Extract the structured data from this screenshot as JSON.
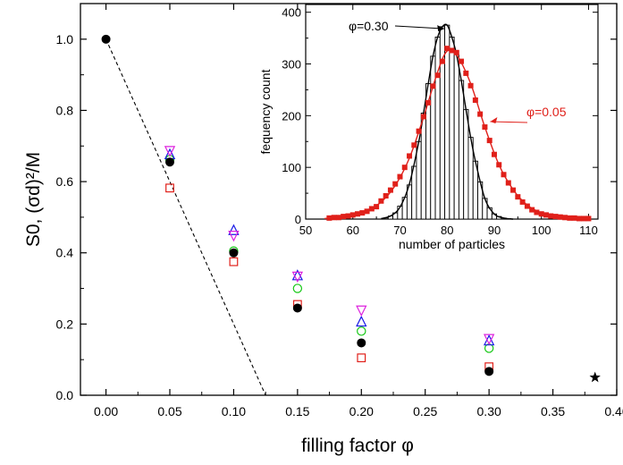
{
  "chart_data": [
    {
      "type": "scatter",
      "xlabel": "filling factor φ",
      "ylabel": "S0, (σd)²/M",
      "xlim": [
        -0.02,
        0.4
      ],
      "ylim": [
        0.0,
        1.1
      ],
      "xticks": [
        "0.00",
        "0.05",
        "0.10",
        "0.15",
        "0.20",
        "0.25",
        "0.30",
        "0.35",
        "0.40"
      ],
      "yticks": [
        "0.0",
        "0.2",
        "0.4",
        "0.6",
        "0.8",
        "1.0"
      ],
      "series": [
        {
          "marker": "filled-circle",
          "color": "#000000",
          "points": [
            [
              0.0,
              1.0
            ],
            [
              0.05,
              0.655
            ],
            [
              0.1,
              0.4
            ],
            [
              0.15,
              0.245
            ],
            [
              0.2,
              0.147
            ],
            [
              0.3,
              0.067
            ]
          ]
        },
        {
          "marker": "open-square",
          "color": "#e0201a",
          "points": [
            [
              0.05,
              0.582
            ],
            [
              0.1,
              0.375
            ],
            [
              0.15,
              0.255
            ],
            [
              0.2,
              0.105
            ],
            [
              0.3,
              0.08
            ]
          ]
        },
        {
          "marker": "open-circle",
          "color": "#16c816",
          "points": [
            [
              0.05,
              0.662
            ],
            [
              0.1,
              0.405
            ],
            [
              0.15,
              0.3
            ],
            [
              0.2,
              0.18
            ],
            [
              0.3,
              0.132
            ]
          ]
        },
        {
          "marker": "open-triangle-up",
          "color": "#1a1ae6",
          "points": [
            [
              0.05,
              0.675
            ],
            [
              0.1,
              0.462
            ],
            [
              0.15,
              0.335
            ],
            [
              0.2,
              0.205
            ],
            [
              0.3,
              0.152
            ]
          ]
        },
        {
          "marker": "open-triangle-down",
          "color": "#dd22dd",
          "points": [
            [
              0.05,
              0.688
            ],
            [
              0.1,
              0.45
            ],
            [
              0.15,
              0.335
            ],
            [
              0.2,
              0.24
            ],
            [
              0.3,
              0.16
            ]
          ]
        },
        {
          "marker": "star",
          "color": "#000000",
          "points": [
            [
              0.383,
              0.05
            ]
          ]
        }
      ],
      "reference_line": {
        "style": "dashed",
        "color": "#000000",
        "points": [
          [
            0.0,
            1.0
          ],
          [
            0.125,
            0.0
          ]
        ]
      }
    },
    {
      "type": "bar",
      "xlabel": "number of particles",
      "ylabel": "fequency count",
      "xlim": [
        50,
        112
      ],
      "ylim": [
        0,
        415
      ],
      "xticks": [
        "50",
        "60",
        "70",
        "80",
        "90",
        "100",
        "110"
      ],
      "yticks": [
        "0",
        "100",
        "200",
        "300",
        "400"
      ],
      "histogram": {
        "name": "φ=0.30",
        "color": "#000000",
        "bin_width": 1,
        "bin_centers": [
          67,
          68,
          69,
          70,
          71,
          72,
          73,
          74,
          75,
          76,
          77,
          78,
          79,
          80,
          81,
          82,
          83,
          84,
          85,
          86,
          87,
          88,
          89,
          90,
          91,
          92,
          93
        ],
        "counts": [
          2,
          6,
          12,
          25,
          42,
          66,
          102,
          150,
          205,
          262,
          315,
          352,
          372,
          375,
          352,
          318,
          268,
          212,
          158,
          112,
          72,
          40,
          22,
          10,
          5,
          2,
          1
        ]
      },
      "line_curve": {
        "name": "φ=0.30",
        "color": "#000000",
        "x": [
          66,
          68,
          70,
          72,
          74,
          75,
          76,
          77,
          78,
          79,
          80,
          81,
          82,
          83,
          84,
          85,
          86,
          88,
          90,
          92,
          94
        ],
        "y": [
          1,
          6,
          23,
          68,
          150,
          205,
          262,
          315,
          352,
          372,
          375,
          352,
          318,
          268,
          212,
          158,
          112,
          40,
          10,
          2,
          0
        ]
      },
      "scatter_series": {
        "name": "φ=0.05",
        "color": "#e0201a",
        "x": [
          55,
          56,
          57,
          58,
          59,
          60,
          61,
          62,
          63,
          64,
          65,
          66,
          67,
          68,
          69,
          70,
          71,
          72,
          73,
          74,
          75,
          76,
          77,
          78,
          79,
          80,
          81,
          82,
          83,
          84,
          85,
          86,
          87,
          88,
          89,
          90,
          91,
          92,
          93,
          94,
          95,
          96,
          97,
          98,
          99,
          100,
          101,
          102,
          103,
          104,
          105,
          106,
          107,
          108,
          109,
          110
        ],
        "y": [
          2,
          3,
          3,
          5,
          6,
          8,
          10,
          12,
          15,
          20,
          24,
          35,
          45,
          56,
          68,
          82,
          100,
          122,
          143,
          170,
          198,
          225,
          257,
          278,
          305,
          330,
          326,
          322,
          305,
          282,
          258,
          230,
          203,
          178,
          152,
          125,
          105,
          86,
          70,
          56,
          43,
          33,
          25,
          18,
          13,
          10,
          8,
          6,
          5,
          4,
          3,
          2,
          2,
          1,
          1,
          1
        ]
      },
      "fit_curve": {
        "name": "φ=0.05",
        "color": "#e0201a",
        "x": [
          54,
          57,
          60,
          63,
          66,
          69,
          72,
          75,
          78,
          80,
          82,
          85,
          88,
          91,
          94,
          97,
          100,
          103,
          106,
          110
        ],
        "y": [
          1,
          4,
          9,
          17,
          33,
          65,
          118,
          197,
          285,
          325,
          318,
          262,
          178,
          105,
          57,
          27,
          12,
          5,
          2,
          1
        ]
      },
      "annotations": [
        {
          "text": "φ=0.30",
          "color": "#000000",
          "arrow_to": [
            80,
            375
          ]
        },
        {
          "text": "φ=0.05",
          "color": "#e0201a",
          "arrow_to": [
            88,
            178
          ]
        }
      ]
    }
  ]
}
